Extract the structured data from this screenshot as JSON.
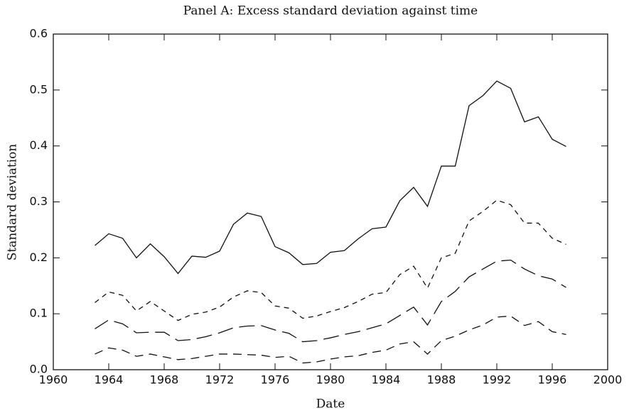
{
  "chart_data": {
    "type": "line",
    "title": "Panel A: Excess standard deviation against time",
    "xlabel": "Date",
    "ylabel": "Standard deviation",
    "x": [
      1963,
      1964,
      1965,
      1966,
      1967,
      1968,
      1969,
      1970,
      1971,
      1972,
      1973,
      1974,
      1975,
      1976,
      1977,
      1978,
      1979,
      1980,
      1981,
      1982,
      1983,
      1984,
      1985,
      1986,
      1987,
      1988,
      1989,
      1990,
      1991,
      1992,
      1993,
      1994,
      1995,
      1996,
      1997
    ],
    "series": [
      {
        "color": "#111111",
        "style": "solid",
        "values": [
          0.222,
          0.243,
          0.235,
          0.2,
          0.225,
          0.202,
          0.172,
          0.203,
          0.201,
          0.212,
          0.26,
          0.28,
          0.274,
          0.22,
          0.209,
          0.188,
          0.19,
          0.21,
          0.213,
          0.234,
          0.252,
          0.255,
          0.302,
          0.326,
          0.292,
          0.364,
          0.364,
          0.472,
          0.49,
          0.516,
          0.503,
          0.443,
          0.452,
          0.412,
          0.399
        ]
      },
      {
        "color": "#111111",
        "style": "short-dash",
        "values": [
          0.12,
          0.139,
          0.133,
          0.105,
          0.122,
          0.105,
          0.088,
          0.099,
          0.103,
          0.112,
          0.13,
          0.141,
          0.138,
          0.114,
          0.11,
          0.092,
          0.096,
          0.104,
          0.111,
          0.122,
          0.135,
          0.138,
          0.17,
          0.185,
          0.146,
          0.2,
          0.208,
          0.266,
          0.283,
          0.303,
          0.295,
          0.262,
          0.262,
          0.235,
          0.224
        ]
      },
      {
        "color": "#111111",
        "style": "long-dash",
        "values": [
          0.073,
          0.089,
          0.082,
          0.066,
          0.067,
          0.067,
          0.052,
          0.054,
          0.059,
          0.066,
          0.075,
          0.078,
          0.079,
          0.071,
          0.065,
          0.05,
          0.052,
          0.057,
          0.063,
          0.068,
          0.075,
          0.082,
          0.097,
          0.112,
          0.08,
          0.122,
          0.14,
          0.166,
          0.18,
          0.194,
          0.196,
          0.18,
          0.168,
          0.162,
          0.147
        ]
      },
      {
        "color": "#111111",
        "style": "dash",
        "values": [
          0.028,
          0.039,
          0.035,
          0.024,
          0.028,
          0.023,
          0.018,
          0.02,
          0.024,
          0.028,
          0.028,
          0.027,
          0.026,
          0.022,
          0.024,
          0.012,
          0.014,
          0.019,
          0.023,
          0.025,
          0.031,
          0.035,
          0.046,
          0.05,
          0.028,
          0.052,
          0.06,
          0.071,
          0.08,
          0.094,
          0.096,
          0.079,
          0.086,
          0.068,
          0.063
        ]
      }
    ],
    "xlim": [
      1960,
      2000
    ],
    "xticks": [
      1960,
      1964,
      1968,
      1972,
      1976,
      1980,
      1984,
      1988,
      1992,
      1996,
      2000
    ],
    "ylim": [
      0,
      0.6
    ],
    "yticks": [
      {
        "value": 0,
        "label": "0.0"
      },
      0.1,
      0.2,
      0.3,
      0.4,
      0.5,
      0.6
    ],
    "grid": false
  }
}
